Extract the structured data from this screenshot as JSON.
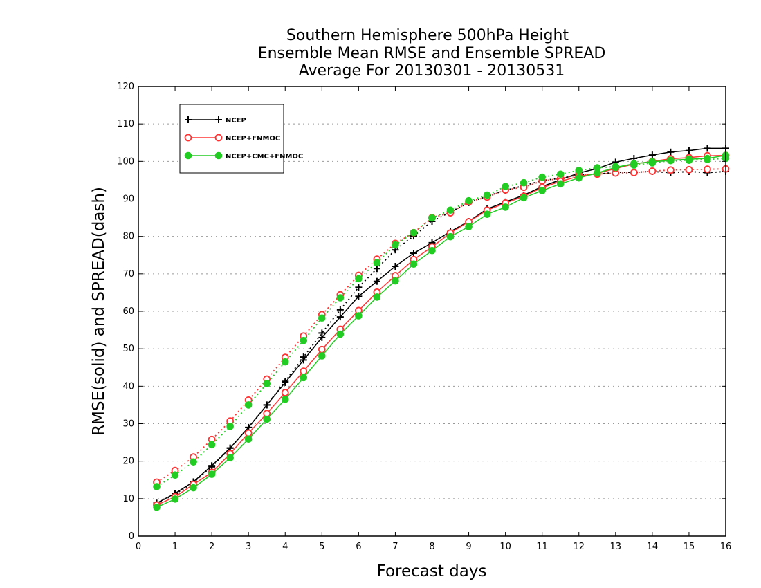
{
  "chart_data": {
    "type": "line",
    "title": [
      "Southern Hemisphere 500hPa Height",
      "Ensemble Mean RMSE and Ensemble SPREAD",
      "Average For 20130301 - 20130531"
    ],
    "xlabel": "Forecast days",
    "ylabel": "RMSE(solid) and SPREAD(dash)",
    "xlim": [
      0,
      16
    ],
    "ylim": [
      0,
      120
    ],
    "xticks": [
      0,
      1,
      2,
      3,
      4,
      5,
      6,
      7,
      8,
      9,
      10,
      11,
      12,
      13,
      14,
      15,
      16
    ],
    "yticks": [
      0,
      10,
      20,
      30,
      40,
      50,
      60,
      70,
      80,
      90,
      100,
      110,
      120
    ],
    "grid": true,
    "legend_position": "top-left",
    "x": [
      0.5,
      1,
      1.5,
      2,
      2.5,
      3,
      3.5,
      4,
      4.5,
      5,
      5.5,
      6,
      6.5,
      7,
      7.5,
      8,
      8.5,
      9,
      9.5,
      10,
      10.5,
      11,
      11.5,
      12,
      12.5,
      13,
      13.5,
      14,
      14.5,
      15,
      15.5,
      16
    ],
    "series": [
      {
        "name": "NCEP",
        "color": "#000000",
        "marker": "plus",
        "rmse": [
          8.8,
          11.4,
          14.5,
          18.8,
          23.5,
          29.0,
          35.0,
          41.0,
          47.0,
          53.0,
          58.5,
          64.0,
          68.0,
          72.0,
          75.5,
          78.3,
          81.3,
          84.0,
          87.3,
          89.2,
          91.0,
          93.3,
          95.1,
          96.9,
          98.1,
          99.8,
          100.8,
          101.7,
          102.5,
          102.9,
          103.5,
          103.5
        ],
        "spread": [
          8.8,
          11.2,
          14.3,
          18.5,
          23.5,
          29.0,
          35.0,
          41.3,
          47.8,
          54.2,
          60.4,
          66.4,
          71.4,
          76.4,
          80.1,
          84.0,
          86.5,
          89.0,
          90.7,
          92.3,
          93.5,
          94.9,
          95.5,
          96.4,
          96.6,
          97.1,
          97.1,
          97.3,
          97.0,
          97.3,
          97.0,
          97.3
        ]
      },
      {
        "name": "NCEP+FNMOC",
        "color": "#ff3333",
        "marker": "open-circle",
        "rmse": [
          8.3,
          10.5,
          13.8,
          17.0,
          22.0,
          27.5,
          32.7,
          38.3,
          44.0,
          49.8,
          55.2,
          60.2,
          65.1,
          69.5,
          73.8,
          77.2,
          80.9,
          83.9,
          87.0,
          88.9,
          90.7,
          93.0,
          94.7,
          96.0,
          96.8,
          98.1,
          99.3,
          100.0,
          100.7,
          101.0,
          101.5,
          101.6
        ],
        "spread": [
          14.4,
          17.5,
          21.1,
          25.8,
          30.7,
          36.3,
          41.9,
          47.7,
          53.4,
          59.1,
          64.4,
          69.6,
          73.9,
          78.1,
          81.0,
          85.0,
          86.3,
          89.2,
          90.5,
          92.4,
          93.1,
          94.8,
          95.4,
          96.4,
          96.6,
          96.9,
          97.0,
          97.4,
          97.7,
          97.8,
          97.9,
          98.0
        ]
      },
      {
        "name": "NCEP+CMC+FNMOC",
        "color": "#22cc22",
        "marker": "filled-circle",
        "rmse": [
          7.7,
          9.9,
          12.9,
          16.5,
          20.9,
          25.9,
          31.2,
          36.5,
          42.3,
          48.1,
          53.9,
          58.8,
          63.8,
          68.1,
          72.6,
          76.2,
          79.9,
          82.6,
          85.9,
          87.8,
          90.3,
          92.2,
          94.0,
          95.6,
          96.9,
          98.4,
          99.4,
          99.9,
          100.3,
          100.6,
          100.8,
          101.6
        ],
        "spread": [
          13.2,
          16.3,
          19.8,
          24.4,
          29.3,
          35.0,
          40.7,
          46.5,
          52.2,
          58.2,
          63.6,
          68.7,
          73.0,
          77.7,
          81.0,
          84.9,
          87.0,
          89.5,
          91.0,
          93.3,
          94.3,
          95.8,
          96.6,
          97.6,
          98.3,
          98.6,
          99.0,
          99.6,
          100.2,
          100.3,
          100.5,
          100.8
        ]
      }
    ]
  }
}
